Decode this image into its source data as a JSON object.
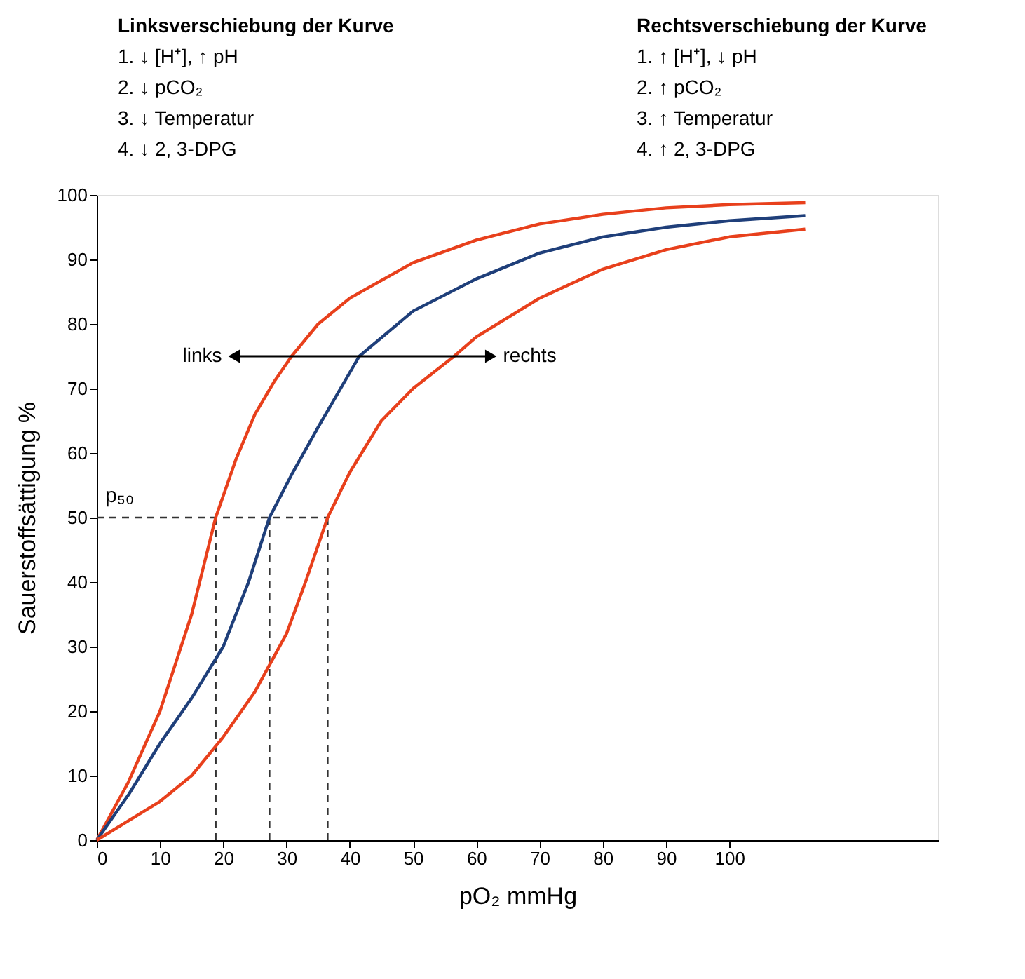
{
  "chart_data": {
    "type": "line",
    "xlabel": "pO₂   mmHg",
    "ylabel": "Sauerstoffsättigung %",
    "xlim": [
      0,
      133
    ],
    "xticks": [
      0,
      10,
      20,
      30,
      40,
      50,
      60,
      70,
      80,
      90,
      100
    ],
    "ylim": [
      0,
      100
    ],
    "yticks": [
      0,
      10,
      20,
      30,
      40,
      50,
      60,
      70,
      80,
      90,
      100
    ],
    "grid": false,
    "marker": "none",
    "line_style": "solid",
    "series": [
      {
        "color": "#e8401c",
        "x": [
          0,
          5,
          10,
          15,
          18.8,
          22,
          25,
          28,
          30.8,
          35,
          40,
          50,
          60,
          70,
          80,
          90,
          100,
          112
        ],
        "values": [
          0,
          9,
          20,
          35,
          50,
          59,
          66,
          71,
          75,
          80,
          84,
          89.5,
          93,
          95.5,
          97,
          98,
          98.5,
          98.8
        ]
      },
      {
        "color": "#1f3f7a",
        "x": [
          0,
          5,
          10,
          15,
          20,
          24,
          27.3,
          31,
          35,
          41.5,
          50,
          60,
          70,
          80,
          90,
          100,
          112
        ],
        "values": [
          0,
          7,
          15,
          22,
          30,
          40,
          50,
          57,
          64,
          75,
          82,
          87,
          91,
          93.5,
          95,
          96,
          96.8
        ]
      },
      {
        "color": "#e8401c",
        "x": [
          0,
          5,
          10,
          15,
          20,
          25,
          30,
          33,
          36.5,
          40,
          45,
          50,
          56.5,
          60,
          70,
          80,
          90,
          100,
          112
        ],
        "values": [
          0,
          3,
          6,
          10,
          16,
          23,
          32,
          40,
          50,
          57,
          65,
          70,
          75,
          78,
          84,
          88.5,
          91.5,
          93.5,
          94.7
        ]
      }
    ],
    "ref_lines": [
      {
        "axis": "y",
        "value": 50,
        "label": "p₅₀",
        "line_style": "dashed",
        "color": "#333333"
      },
      {
        "axis": "x",
        "value": 18.8,
        "label": null,
        "line_style": "dashed",
        "color": "#333333"
      },
      {
        "axis": "x",
        "value": 27.3,
        "label": null,
        "line_style": "dashed",
        "color": "#333333"
      },
      {
        "axis": "x",
        "value": 36.5,
        "label": null,
        "line_style": "dashed",
        "color": "#333333"
      }
    ],
    "annotations": [
      "Linksverschiebung der Kurve",
      "1. ↓ [H⁺], ↑ pH",
      "2. ↓ pCO₂",
      "3. ↓ Temperatur",
      "4. ↓ 2, 3-DPG",
      "Rechtsverschiebung der Kurve",
      "1. ↑ [H⁺], ↓ pH",
      "2. ↑ pCO₂",
      "3. ↑ Temperatur",
      "4. ↑ 2, 3-DPG",
      {
        "text": "links",
        "x": 22,
        "y": 75
      },
      {
        "text": "rechts",
        "x": 62,
        "y": 75
      }
    ]
  }
}
